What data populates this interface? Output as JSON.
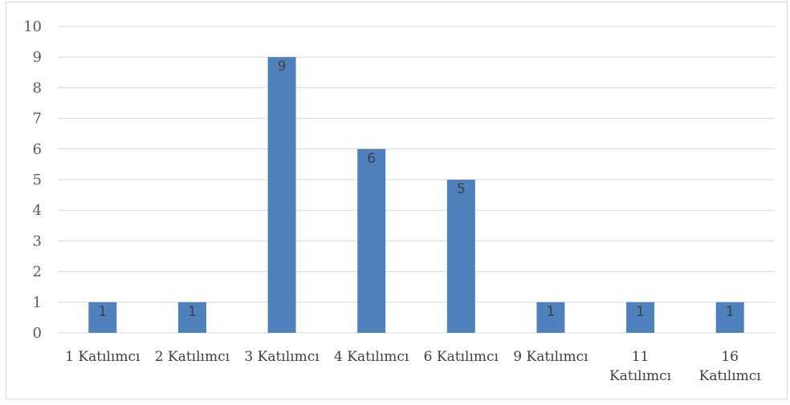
{
  "chart_data": {
    "type": "bar",
    "categories": [
      [
        "1 Katılımcı"
      ],
      [
        "2 Katılımcı"
      ],
      [
        "3 Katılımcı"
      ],
      [
        "4 Katılımcı"
      ],
      [
        "6 Katılımcı"
      ],
      [
        "9 Katılımcı"
      ],
      [
        "11",
        "Katılımcı"
      ],
      [
        "16",
        "Katılımcı"
      ]
    ],
    "values": [
      1,
      1,
      9,
      6,
      5,
      1,
      1,
      1
    ],
    "data_labels": [
      "1",
      "1",
      "9",
      "6",
      "5",
      "1",
      "1",
      "1"
    ],
    "title": "",
    "xlabel": "",
    "ylabel": "",
    "ylim": [
      0,
      10
    ],
    "yticks": [
      0,
      1,
      2,
      3,
      4,
      5,
      6,
      7,
      8,
      9,
      10
    ],
    "grid": true,
    "legend": "none",
    "colors": {
      "bar": "#4f81bd",
      "grid": "#d9d9d9",
      "axis": "#d9d9d9",
      "tick_text": "#595959",
      "label_text": "#404040"
    }
  }
}
